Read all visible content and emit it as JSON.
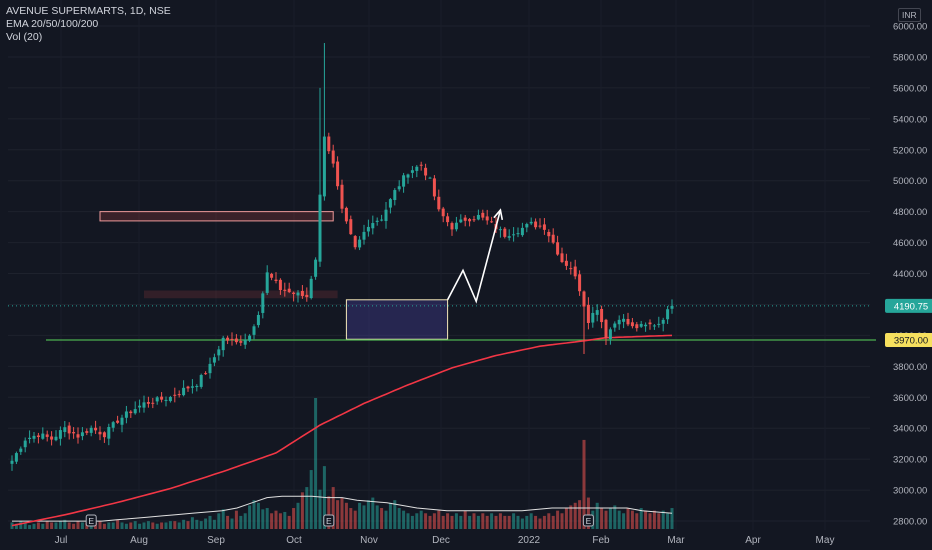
{
  "legend": {
    "symbol": "AVENUE SUPERMARTS, 1D, NSE",
    "ema": "EMA 20/50/100/200",
    "vol": "Vol (20)"
  },
  "currency": "INR",
  "colors": {
    "background": "#131722",
    "up": "#26a69a",
    "down": "#ef5350",
    "ema": "#f23645",
    "support": "#4caf50",
    "volume_ma": "#e0e0e0",
    "last_price": "#26a69a",
    "arrow": "#ffffff"
  },
  "chart_data": {
    "type": "candlestick",
    "yticks": [
      "2800.00",
      "3000.00",
      "3200.00",
      "3400.00",
      "3600.00",
      "3800.00",
      "4000.00",
      "4200.00",
      "4400.00",
      "4600.00",
      "4800.00",
      "5000.00",
      "5200.00",
      "5400.00",
      "5600.00",
      "5800.00",
      "6000.00"
    ],
    "xticks": [
      "Jul",
      "Aug",
      "Sep",
      "Oct",
      "Nov",
      "Dec",
      "2022",
      "Feb",
      "Mar",
      "Apr",
      "May"
    ],
    "ylim": [
      2750,
      6050
    ],
    "last_price": {
      "value": 4190.75,
      "label": "4190.75"
    },
    "support": {
      "value": 3970,
      "label": "3970.00"
    },
    "candle_anchors": [
      [
        0,
        3190
      ],
      [
        3,
        3330
      ],
      [
        6,
        3360
      ],
      [
        9,
        3330
      ],
      [
        12,
        3400
      ],
      [
        15,
        3350
      ],
      [
        18,
        3400
      ],
      [
        21,
        3360
      ],
      [
        24,
        3450
      ],
      [
        27,
        3510
      ],
      [
        30,
        3560
      ],
      [
        33,
        3580
      ],
      [
        36,
        3600
      ],
      [
        39,
        3650
      ],
      [
        42,
        3690
      ],
      [
        45,
        3800
      ],
      [
        48,
        3980
      ],
      [
        51,
        3950
      ],
      [
        54,
        4000
      ],
      [
        56,
        4150
      ],
      [
        58,
        4400
      ],
      [
        61,
        4300
      ],
      [
        64,
        4270
      ],
      [
        67,
        4250
      ],
      [
        69,
        4500
      ],
      [
        71,
        5300
      ],
      [
        73,
        5100
      ],
      [
        75,
        4800
      ],
      [
        78,
        4560
      ],
      [
        81,
        4720
      ],
      [
        84,
        4760
      ],
      [
        87,
        4930
      ],
      [
        90,
        5060
      ],
      [
        93,
        5100
      ],
      [
        95,
        5000
      ],
      [
        97,
        4800
      ],
      [
        100,
        4700
      ],
      [
        103,
        4750
      ],
      [
        106,
        4770
      ],
      [
        109,
        4720
      ],
      [
        112,
        4650
      ],
      [
        115,
        4680
      ],
      [
        118,
        4720
      ],
      [
        121,
        4700
      ],
      [
        123,
        4600
      ],
      [
        125,
        4480
      ],
      [
        127,
        4440
      ],
      [
        129,
        4300
      ],
      [
        131,
        4100
      ],
      [
        133,
        4180
      ],
      [
        135,
        4000
      ],
      [
        138,
        4120
      ],
      [
        141,
        4050
      ],
      [
        144,
        4060
      ],
      [
        147,
        4080
      ],
      [
        150,
        4190.75
      ]
    ],
    "candle_count": 151,
    "ema200_anchors": [
      [
        0,
        2770
      ],
      [
        12,
        2840
      ],
      [
        24,
        2920
      ],
      [
        36,
        3010
      ],
      [
        48,
        3120
      ],
      [
        60,
        3240
      ],
      [
        70,
        3420
      ],
      [
        80,
        3560
      ],
      [
        90,
        3680
      ],
      [
        100,
        3790
      ],
      [
        110,
        3870
      ],
      [
        120,
        3930
      ],
      [
        130,
        3965
      ],
      [
        135,
        3985
      ],
      [
        140,
        3990
      ],
      [
        150,
        4000
      ]
    ],
    "volume_levels": [
      0.05,
      0.04,
      0.06,
      0.05,
      0.03,
      0.04,
      0.05,
      0.04,
      0.06,
      0.05,
      0.05,
      0.06,
      0.07,
      0.05,
      0.04,
      0.06,
      0.05,
      0.05,
      0.04,
      0.05,
      0.06,
      0.04,
      0.05,
      0.05,
      0.07,
      0.05,
      0.04,
      0.05,
      0.06,
      0.04,
      0.05,
      0.06,
      0.05,
      0.04,
      0.05,
      0.05,
      0.06,
      0.06,
      0.05,
      0.07,
      0.06,
      0.09,
      0.07,
      0.06,
      0.08,
      0.1,
      0.07,
      0.12,
      0.15,
      0.1,
      0.08,
      0.14,
      0.1,
      0.12,
      0.18,
      0.22,
      0.2,
      0.15,
      0.16,
      0.12,
      0.14,
      0.12,
      0.13,
      0.1,
      0.16,
      0.2,
      0.28,
      0.32,
      0.45,
      1.0,
      0.3,
      0.48,
      0.25,
      0.32,
      0.22,
      0.24,
      0.2,
      0.16,
      0.14,
      0.2,
      0.18,
      0.22,
      0.24,
      0.18,
      0.16,
      0.14,
      0.2,
      0.22,
      0.16,
      0.14,
      0.12,
      0.1,
      0.12,
      0.14,
      0.12,
      0.1,
      0.12,
      0.14,
      0.1,
      0.12,
      0.1,
      0.12,
      0.1,
      0.14,
      0.1,
      0.12,
      0.1,
      0.12,
      0.1,
      0.12,
      0.1,
      0.12,
      0.1,
      0.1,
      0.12,
      0.1,
      0.08,
      0.1,
      0.12,
      0.1,
      0.08,
      0.1,
      0.12,
      0.1,
      0.14,
      0.12,
      0.16,
      0.18,
      0.2,
      0.22,
      0.68,
      0.24,
      0.14,
      0.2,
      0.16,
      0.14,
      0.16,
      0.18,
      0.14,
      0.12,
      0.16,
      0.14,
      0.12,
      0.16,
      0.14,
      0.12,
      0.14,
      0.12,
      0.14,
      0.12,
      0.16
    ],
    "volume_ma_levels": [
      0.06,
      0.06,
      0.06,
      0.06,
      0.06,
      0.06,
      0.06,
      0.07,
      0.08,
      0.09,
      0.1,
      0.11,
      0.12,
      0.13,
      0.14,
      0.16,
      0.2,
      0.24,
      0.25,
      0.25,
      0.25,
      0.24,
      0.24,
      0.22,
      0.21,
      0.2,
      0.18,
      0.16,
      0.15,
      0.14,
      0.14,
      0.14,
      0.14,
      0.14,
      0.14,
      0.15,
      0.16,
      0.16,
      0.16,
      0.16,
      0.16,
      0.16,
      0.14,
      0.13,
      0.12
    ],
    "resistance_zone": [
      [
        20,
        4740
      ],
      [
        73,
        4800
      ]
    ],
    "mid_zone": [
      [
        30,
        4240
      ],
      [
        74,
        4290
      ]
    ],
    "consolidation_box": [
      [
        76,
        3975
      ],
      [
        99,
        4230
      ]
    ],
    "projection_arrow": [
      [
        99,
        4230
      ],
      [
        102.5,
        4420
      ],
      [
        105.5,
        4220
      ],
      [
        111,
        4810
      ]
    ],
    "earnings_markers": [
      "E",
      "E",
      "E"
    ]
  }
}
